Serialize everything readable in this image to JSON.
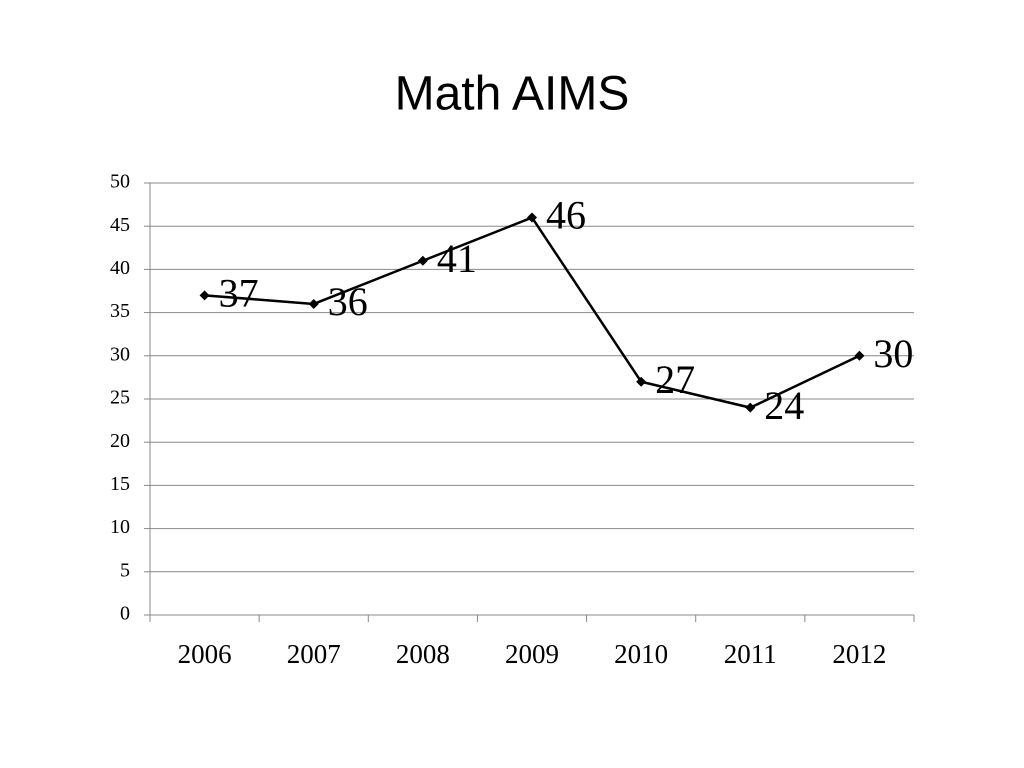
{
  "chart_data": {
    "type": "line",
    "title": "Math AIMS",
    "categories": [
      "2006",
      "2007",
      "2008",
      "2009",
      "2010",
      "2011",
      "2012"
    ],
    "values": [
      37,
      36,
      41,
      46,
      27,
      24,
      30
    ],
    "color": "#000000",
    "ylim": [
      0,
      50
    ],
    "yticks": [
      0,
      5,
      10,
      15,
      20,
      25,
      30,
      35,
      40,
      45,
      50
    ],
    "grid": true
  }
}
